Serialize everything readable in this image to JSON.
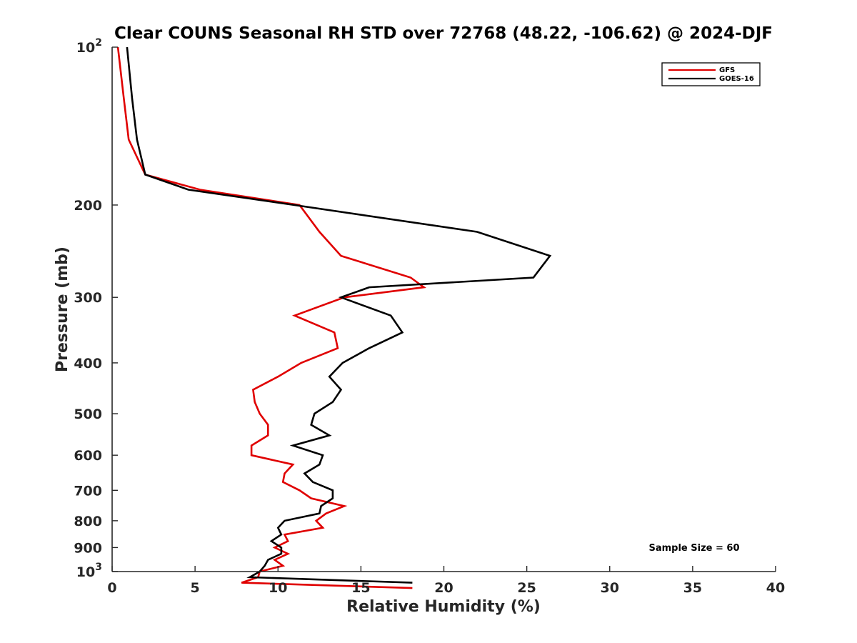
{
  "chart_data": {
    "type": "line",
    "title": "Clear COUNS Seasonal RH STD over 72768 (48.22, -106.62) @ 2024-DJF",
    "xlabel": "Relative Humidity (%)",
    "ylabel": "Pressure (mb)",
    "xlim": [
      0,
      40
    ],
    "ylim": [
      100,
      1000
    ],
    "yscale": "log",
    "y_reversed": true,
    "x_ticks": [
      "0",
      "5",
      "10",
      "15",
      "20",
      "25",
      "30",
      "35",
      "40"
    ],
    "y_ticks": [
      {
        "value": 100,
        "base": "10",
        "exp": "2"
      },
      {
        "value": 200,
        "label": "200"
      },
      {
        "value": 300,
        "label": "300"
      },
      {
        "value": 400,
        "label": "400"
      },
      {
        "value": 500,
        "label": "500"
      },
      {
        "value": 600,
        "label": "600"
      },
      {
        "value": 700,
        "label": "700"
      },
      {
        "value": 800,
        "label": "800"
      },
      {
        "value": 900,
        "label": "900"
      },
      {
        "value": 1000,
        "base": "10",
        "exp": "3"
      }
    ],
    "legend_position": "top-right",
    "annotation": "Sample Size = 60",
    "series": [
      {
        "name": "GFS",
        "color": "#e00000",
        "points": [
          [
            0.35,
            100
          ],
          [
            0.7,
            125
          ],
          [
            1.0,
            150
          ],
          [
            2.0,
            175
          ],
          [
            5.3,
            187
          ],
          [
            11.3,
            200
          ],
          [
            12.5,
            225
          ],
          [
            13.8,
            250
          ],
          [
            18.0,
            275
          ],
          [
            18.8,
            287
          ],
          [
            14.0,
            300
          ],
          [
            11.0,
            325
          ],
          [
            13.4,
            350
          ],
          [
            13.6,
            375
          ],
          [
            11.4,
            400
          ],
          [
            10.0,
            425
          ],
          [
            8.5,
            450
          ],
          [
            8.6,
            475
          ],
          [
            8.9,
            500
          ],
          [
            9.4,
            525
          ],
          [
            9.4,
            550
          ],
          [
            8.4,
            575
          ],
          [
            8.4,
            600
          ],
          [
            10.9,
            625
          ],
          [
            10.4,
            650
          ],
          [
            10.3,
            675
          ],
          [
            11.3,
            700
          ],
          [
            12.0,
            725
          ],
          [
            14.0,
            750
          ],
          [
            12.9,
            775
          ],
          [
            12.3,
            800
          ],
          [
            12.7,
            825
          ],
          [
            10.4,
            850
          ],
          [
            10.6,
            875
          ],
          [
            9.8,
            900
          ],
          [
            10.6,
            925
          ],
          [
            9.8,
            950
          ],
          [
            10.3,
            975
          ],
          [
            8.9,
            1000
          ],
          [
            8.8,
            1025
          ],
          [
            7.8,
            1050
          ],
          [
            18.1,
            1075
          ]
        ]
      },
      {
        "name": "GOES-16",
        "color": "#000000",
        "points": [
          [
            0.9,
            100
          ],
          [
            1.2,
            125
          ],
          [
            1.5,
            150
          ],
          [
            2.0,
            175
          ],
          [
            4.6,
            187
          ],
          [
            11.0,
            200
          ],
          [
            22.0,
            225
          ],
          [
            26.4,
            250
          ],
          [
            25.4,
            275
          ],
          [
            15.5,
            287
          ],
          [
            13.8,
            300
          ],
          [
            16.8,
            325
          ],
          [
            17.5,
            350
          ],
          [
            15.5,
            375
          ],
          [
            13.9,
            400
          ],
          [
            13.1,
            425
          ],
          [
            13.8,
            450
          ],
          [
            13.3,
            475
          ],
          [
            12.2,
            500
          ],
          [
            12.0,
            525
          ],
          [
            13.1,
            550
          ],
          [
            10.9,
            575
          ],
          [
            12.7,
            600
          ],
          [
            12.5,
            625
          ],
          [
            11.6,
            650
          ],
          [
            12.1,
            675
          ],
          [
            13.3,
            700
          ],
          [
            13.3,
            725
          ],
          [
            12.6,
            750
          ],
          [
            12.5,
            775
          ],
          [
            10.4,
            800
          ],
          [
            10.0,
            825
          ],
          [
            10.2,
            850
          ],
          [
            9.6,
            875
          ],
          [
            10.2,
            900
          ],
          [
            10.2,
            925
          ],
          [
            9.4,
            950
          ],
          [
            9.2,
            975
          ],
          [
            8.9,
            1000
          ],
          [
            8.3,
            1025
          ],
          [
            18.1,
            1050
          ]
        ]
      }
    ]
  }
}
